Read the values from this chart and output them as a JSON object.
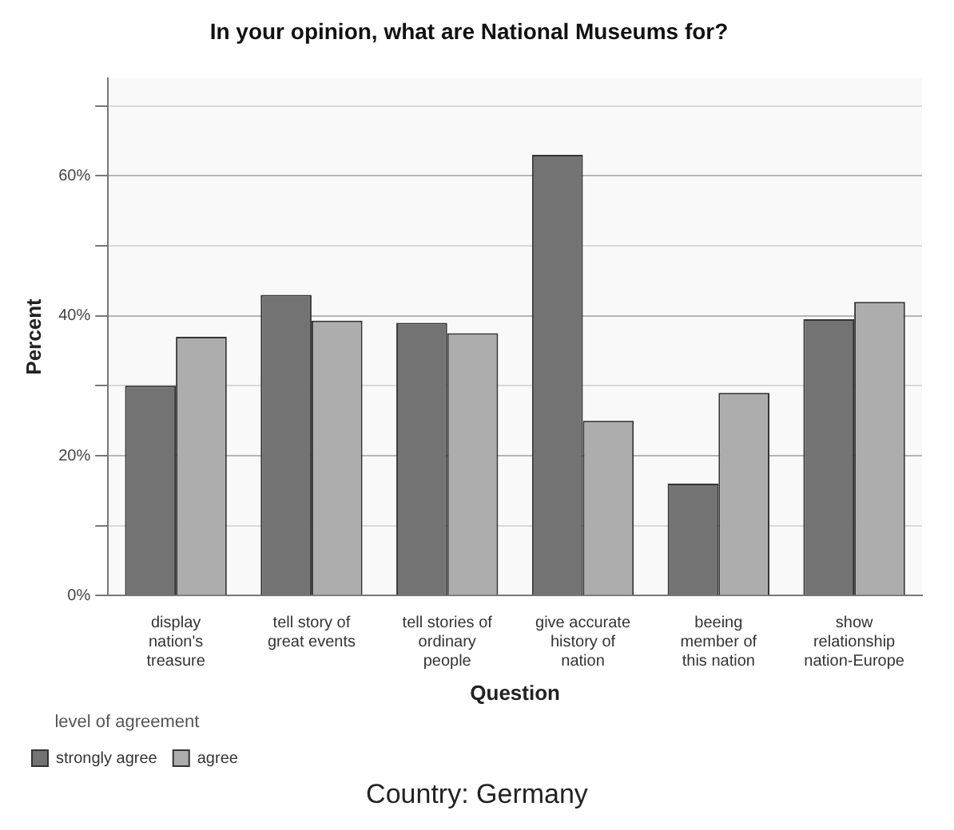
{
  "chart_data": {
    "type": "bar",
    "title": "In your opinion, what are National Museums for?",
    "xlabel": "Question",
    "ylabel": "Percent",
    "legend_title": "level of agreement",
    "annotations": [
      "Country: Germany"
    ],
    "categories": [
      [
        "display",
        "nation's",
        "treasure"
      ],
      [
        "tell story of",
        "great events"
      ],
      [
        "tell stories of",
        "ordinary",
        "people"
      ],
      [
        "give accurate",
        "history of",
        "nation"
      ],
      [
        "beeing",
        "member of",
        "this nation"
      ],
      [
        "show",
        "relationship",
        "nation-Europe"
      ]
    ],
    "series": [
      {
        "name": "strongly agree",
        "color": "#737373",
        "values": [
          30,
          43,
          39,
          63,
          16,
          39.5
        ]
      },
      {
        "name": "agree",
        "color": "#adadad",
        "values": [
          37,
          39.3,
          37.5,
          25,
          29,
          42
        ]
      }
    ],
    "ylim": [
      0,
      74
    ],
    "yticks": [
      {
        "value": 0,
        "label": "0%"
      },
      {
        "value": 10,
        "label": null
      },
      {
        "value": 20,
        "label": "20%"
      },
      {
        "value": 30,
        "label": null
      },
      {
        "value": 40,
        "label": "40%"
      },
      {
        "value": 50,
        "label": null
      },
      {
        "value": 60,
        "label": "60%"
      },
      {
        "value": 70,
        "label": null
      }
    ],
    "grid": "y",
    "legend": "bottom left"
  }
}
